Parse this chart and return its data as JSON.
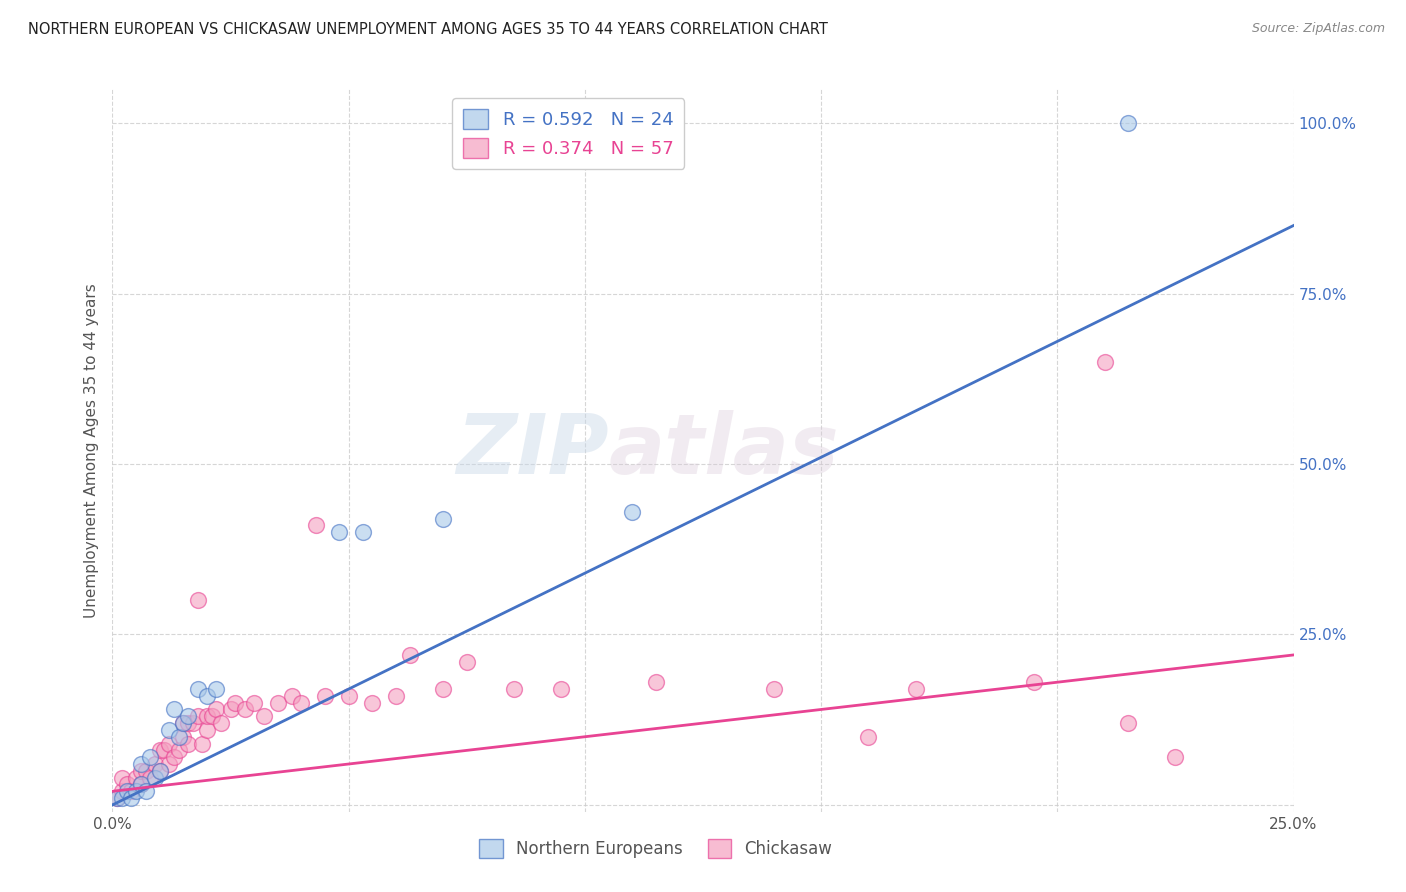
{
  "title": "NORTHERN EUROPEAN VS CHICKASAW UNEMPLOYMENT AMONG AGES 35 TO 44 YEARS CORRELATION CHART",
  "source": "Source: ZipAtlas.com",
  "ylabel": "Unemployment Among Ages 35 to 44 years",
  "xlim": [
    0.0,
    0.25
  ],
  "ylim": [
    -0.01,
    1.05
  ],
  "xticks": [
    0.0,
    0.05,
    0.1,
    0.15,
    0.2,
    0.25
  ],
  "yticks": [
    0.0,
    0.25,
    0.5,
    0.75,
    1.0
  ],
  "xticklabels": [
    "0.0%",
    "",
    "",
    "",
    "",
    "25.0%"
  ],
  "yticklabels": [
    "",
    "25.0%",
    "50.0%",
    "75.0%",
    "100.0%"
  ],
  "blue_R": 0.592,
  "blue_N": 24,
  "pink_R": 0.374,
  "pink_N": 57,
  "blue_color": "#a8c8e8",
  "pink_color": "#f4a0c0",
  "blue_edge_color": "#4472C4",
  "pink_edge_color": "#E84393",
  "blue_line_color": "#4472C4",
  "pink_line_color": "#E84393",
  "watermark_zip": "ZIP",
  "watermark_atlas": "atlas",
  "blue_line_x": [
    0.0,
    0.25
  ],
  "blue_line_y": [
    0.0,
    0.85
  ],
  "pink_line_x": [
    0.0,
    0.25
  ],
  "pink_line_y": [
    0.02,
    0.22
  ],
  "blue_scatter_x": [
    0.001,
    0.002,
    0.003,
    0.004,
    0.005,
    0.006,
    0.006,
    0.007,
    0.008,
    0.009,
    0.01,
    0.012,
    0.013,
    0.014,
    0.015,
    0.016,
    0.018,
    0.02,
    0.022,
    0.048,
    0.053,
    0.07,
    0.11,
    0.215
  ],
  "blue_scatter_y": [
    0.01,
    0.01,
    0.02,
    0.01,
    0.02,
    0.03,
    0.06,
    0.02,
    0.07,
    0.04,
    0.05,
    0.11,
    0.14,
    0.1,
    0.12,
    0.13,
    0.17,
    0.16,
    0.17,
    0.4,
    0.4,
    0.42,
    0.43,
    1.0
  ],
  "pink_scatter_x": [
    0.001,
    0.002,
    0.002,
    0.003,
    0.004,
    0.005,
    0.006,
    0.006,
    0.007,
    0.008,
    0.009,
    0.01,
    0.01,
    0.011,
    0.012,
    0.012,
    0.013,
    0.014,
    0.015,
    0.015,
    0.016,
    0.016,
    0.017,
    0.018,
    0.018,
    0.019,
    0.02,
    0.02,
    0.021,
    0.022,
    0.023,
    0.025,
    0.026,
    0.028,
    0.03,
    0.032,
    0.035,
    0.038,
    0.04,
    0.043,
    0.045,
    0.05,
    0.055,
    0.06,
    0.063,
    0.07,
    0.075,
    0.085,
    0.095,
    0.115,
    0.14,
    0.16,
    0.17,
    0.195,
    0.21,
    0.215,
    0.225
  ],
  "pink_scatter_y": [
    0.01,
    0.02,
    0.04,
    0.03,
    0.02,
    0.04,
    0.03,
    0.05,
    0.05,
    0.04,
    0.06,
    0.05,
    0.08,
    0.08,
    0.06,
    0.09,
    0.07,
    0.08,
    0.1,
    0.12,
    0.09,
    0.12,
    0.12,
    0.13,
    0.3,
    0.09,
    0.11,
    0.13,
    0.13,
    0.14,
    0.12,
    0.14,
    0.15,
    0.14,
    0.15,
    0.13,
    0.15,
    0.16,
    0.15,
    0.41,
    0.16,
    0.16,
    0.15,
    0.16,
    0.22,
    0.17,
    0.21,
    0.17,
    0.17,
    0.18,
    0.17,
    0.1,
    0.17,
    0.18,
    0.65,
    0.12,
    0.07
  ],
  "background_color": "#ffffff",
  "grid_color": "#cccccc"
}
